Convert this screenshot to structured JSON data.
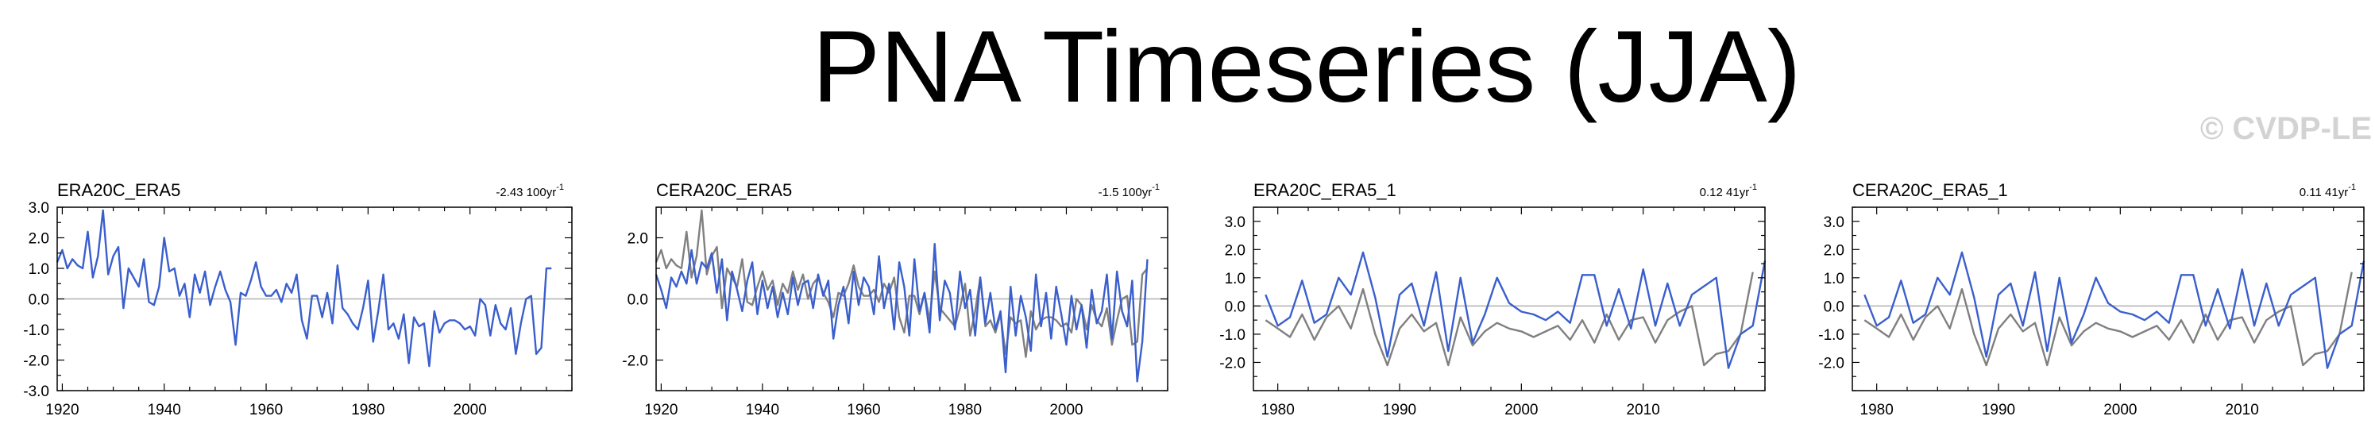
{
  "title": "PNA Timeseries (JJA)",
  "watermark": "© CVDP-LE",
  "colors": {
    "primary": "#3a5fcd",
    "secondary": "#808080",
    "zero_line": "#b0b0b0"
  },
  "chart_data": [
    {
      "type": "line",
      "title": "ERA20C_ERA5",
      "trend": "-2.43 100yr",
      "trend_sup": "-1",
      "xlim": [
        1919,
        2020
      ],
      "ylim": [
        -3.0,
        3.0
      ],
      "xticks": [
        1920,
        1940,
        1960,
        1980,
        2000
      ],
      "yticks": [
        3.0,
        2.0,
        1.0,
        0.0,
        -1.0,
        -2.0,
        -3.0
      ],
      "ytick_labels": [
        "3.0",
        "2.0",
        "1.0",
        "0.0",
        "-1.0",
        "-2.0",
        "-3.0"
      ],
      "series": [
        {
          "x_start": 1919,
          "values": [
            1.2,
            1.6,
            1.0,
            1.3,
            1.1,
            1.0,
            2.2,
            0.7,
            1.4,
            2.9,
            0.8,
            1.4,
            1.7,
            -0.3,
            1.0,
            0.7,
            0.4,
            1.3,
            -0.1,
            -0.2,
            0.4,
            2.0,
            0.9,
            1.0,
            0.1,
            0.5,
            -0.6,
            0.8,
            0.2,
            0.9,
            -0.2,
            0.4,
            0.9,
            0.3,
            -0.1,
            -1.5,
            0.2,
            0.1,
            0.6,
            1.2,
            0.4,
            0.1,
            0.1,
            0.3,
            -0.1,
            0.5,
            0.2,
            0.8,
            -0.7,
            -1.3,
            0.1,
            0.1,
            -0.6,
            0.2,
            -0.8,
            1.1,
            -0.3,
            -0.5,
            -0.8,
            -1.0,
            -0.3,
            0.6,
            -1.4,
            -0.4,
            0.8,
            -1.0,
            -0.8,
            -1.3,
            -0.5,
            -2.1,
            -0.6,
            -0.9,
            -0.8,
            -2.2,
            -0.4,
            -1.1,
            -0.8,
            -0.7,
            -0.7,
            -0.8,
            -1.0,
            -0.9,
            -1.2,
            0.0,
            -0.2,
            -1.2,
            -0.2,
            -0.8,
            -1.0,
            -0.3,
            -1.8,
            -0.8,
            0.0,
            0.1,
            -1.8,
            -1.6,
            1.0,
            1.0
          ]
        }
      ]
    },
    {
      "type": "line",
      "title": "CERA20C_ERA5",
      "trend": "-1.5 100yr",
      "trend_sup": "-1",
      "xlim": [
        1919,
        2020
      ],
      "ylim": [
        -3.0,
        3.0
      ],
      "xticks": [
        1920,
        1940,
        1960,
        1980,
        2000
      ],
      "yticks": [
        2.0,
        0.0,
        -2.0
      ],
      "ytick_labels": [
        "2.0",
        "0.0",
        "-2.0"
      ],
      "series": [
        {
          "name": "",
          "color_role": "secondary",
          "x_start": 1919,
          "values": [
            1.2,
            1.6,
            1.0,
            1.3,
            1.1,
            1.0,
            2.2,
            0.7,
            1.4,
            2.9,
            0.8,
            1.4,
            1.7,
            -0.3,
            1.0,
            0.7,
            0.4,
            1.3,
            -0.1,
            -0.2,
            0.4,
            0.9,
            0.3,
            0.6,
            -0.2,
            0.5,
            0.2,
            0.9,
            0.3,
            0.8,
            0.0,
            0.5,
            0.7,
            0.2,
            -0.1,
            -0.6,
            0.2,
            0.1,
            0.5,
            1.1,
            0.4,
            0.1,
            0.1,
            0.3,
            -0.1,
            0.5,
            0.2,
            0.7,
            -0.6,
            -1.1,
            0.1,
            0.1,
            -0.5,
            0.2,
            -0.7,
            0.9,
            -0.3,
            -0.5,
            -0.7,
            -0.9,
            -0.3,
            0.5,
            -1.2,
            -0.4,
            0.7,
            -0.9,
            -0.7,
            -1.1,
            -0.5,
            -1.8,
            -0.6,
            -0.8,
            -0.7,
            -1.9,
            -0.4,
            -1.0,
            -0.7,
            -0.6,
            -0.6,
            -0.7,
            -0.9,
            -0.8,
            -1.1,
            0.0,
            -0.2,
            -1.0,
            -0.2,
            -0.7,
            -0.9,
            -0.3,
            -1.5,
            -0.7,
            0.0,
            0.1,
            -1.5,
            -1.4,
            0.8,
            1.0
          ]
        },
        {
          "name": "",
          "color_role": "primary",
          "x_start": 1919,
          "values": [
            0.8,
            0.3,
            -0.3,
            0.7,
            0.4,
            0.9,
            0.5,
            1.6,
            0.5,
            1.2,
            1.0,
            1.5,
            0.2,
            1.3,
            -0.7,
            0.9,
            0.3,
            -0.4,
            0.6,
            1.2,
            -0.5,
            0.6,
            -0.3,
            0.4,
            -0.6,
            0.2,
            -0.5,
            0.7,
            -0.2,
            0.5,
            0.6,
            -0.3,
            0.8,
            0.1,
            0.6,
            -1.3,
            -0.2,
            0.4,
            -0.8,
            0.9,
            -0.2,
            0.7,
            0.4,
            -0.5,
            1.4,
            -0.3,
            0.5,
            -1.0,
            1.2,
            0.4,
            -1.2,
            1.3,
            -0.4,
            0.2,
            -1.1,
            1.8,
            -0.7,
            0.6,
            0.2,
            -1.0,
            0.9,
            -0.3,
            0.3,
            -1.2,
            0.7,
            -0.8,
            0.2,
            -1.0,
            -0.4,
            -2.4,
            0.4,
            -1.2,
            0.1,
            -0.6,
            -1.7,
            0.8,
            -0.9,
            0.2,
            -1.3,
            0.4,
            -0.5,
            -1.5,
            0.1,
            -1.0,
            -0.2,
            -1.6,
            0.3,
            -0.8,
            -0.4,
            0.8,
            -1.3,
            0.9,
            -0.4,
            -0.9,
            0.6,
            -2.7,
            -1.4,
            1.3
          ]
        }
      ]
    },
    {
      "type": "line",
      "title": "ERA20C_ERA5_1",
      "trend": "0.12 41yr",
      "trend_sup": "-1",
      "xlim": [
        1978,
        2020
      ],
      "ylim": [
        -3.0,
        3.5
      ],
      "xticks": [
        1980,
        1990,
        2000,
        2010
      ],
      "yticks": [
        3.0,
        2.0,
        1.0,
        0.0,
        -1.0,
        -2.0
      ],
      "ytick_labels": [
        "3.0",
        "2.0",
        "1.0",
        "0.0",
        "-1.0",
        "-2.0"
      ],
      "series": [
        {
          "name": "",
          "color_role": "secondary",
          "x_start": 1979,
          "values": [
            -0.5,
            -0.8,
            -1.1,
            -0.3,
            -1.2,
            -0.4,
            0.0,
            -0.8,
            0.6,
            -1.0,
            -2.1,
            -0.8,
            -0.3,
            -0.9,
            -0.6,
            -2.1,
            -0.4,
            -1.4,
            -0.9,
            -0.6,
            -0.8,
            -0.9,
            -1.1,
            -0.9,
            -0.7,
            -1.2,
            -0.5,
            -1.3,
            -0.3,
            -1.2,
            -0.5,
            -0.4,
            -1.3,
            -0.5,
            -0.2,
            0.0,
            -2.1,
            -1.7,
            -1.6,
            -1.0,
            1.2
          ]
        },
        {
          "name": "",
          "color_role": "primary",
          "x_start": 1979,
          "values": [
            0.4,
            -0.7,
            -0.4,
            0.9,
            -0.6,
            -0.3,
            1.0,
            0.4,
            1.9,
            0.3,
            -1.8,
            0.4,
            0.8,
            -0.7,
            1.2,
            -1.6,
            1.0,
            -1.3,
            -0.3,
            1.0,
            0.1,
            -0.2,
            -0.3,
            -0.5,
            -0.2,
            -0.6,
            1.1,
            1.1,
            -0.7,
            0.6,
            -0.8,
            1.3,
            -0.7,
            0.8,
            -0.7,
            0.4,
            0.7,
            1.0,
            -2.2,
            -1.0,
            -0.7,
            1.6
          ]
        }
      ]
    },
    {
      "type": "line",
      "title": "CERA20C_ERA5_1",
      "trend": "0.11 41yr",
      "trend_sup": "-1",
      "xlim": [
        1978,
        2020
      ],
      "ylim": [
        -3.0,
        3.5
      ],
      "xticks": [
        1980,
        1990,
        2000,
        2010
      ],
      "yticks": [
        3.0,
        2.0,
        1.0,
        0.0,
        -1.0,
        -2.0
      ],
      "ytick_labels": [
        "3.0",
        "2.0",
        "1.0",
        "0.0",
        "-1.0",
        "-2.0"
      ],
      "series": [
        {
          "name": "",
          "color_role": "secondary",
          "x_start": 1979,
          "values": [
            -0.5,
            -0.8,
            -1.1,
            -0.3,
            -1.2,
            -0.4,
            0.0,
            -0.8,
            0.6,
            -1.0,
            -2.1,
            -0.8,
            -0.3,
            -0.9,
            -0.6,
            -2.1,
            -0.4,
            -1.4,
            -0.9,
            -0.6,
            -0.8,
            -0.9,
            -1.1,
            -0.9,
            -0.7,
            -1.2,
            -0.5,
            -1.3,
            -0.3,
            -1.2,
            -0.5,
            -0.4,
            -1.3,
            -0.5,
            -0.2,
            0.0,
            -2.1,
            -1.7,
            -1.6,
            -1.0,
            1.2
          ]
        },
        {
          "name": "",
          "color_role": "primary",
          "x_start": 1979,
          "values": [
            0.4,
            -0.7,
            -0.4,
            0.9,
            -0.6,
            -0.3,
            1.0,
            0.4,
            1.9,
            0.3,
            -1.8,
            0.4,
            0.8,
            -0.7,
            1.2,
            -1.6,
            1.0,
            -1.3,
            -0.3,
            1.0,
            0.1,
            -0.2,
            -0.3,
            -0.5,
            -0.2,
            -0.6,
            1.1,
            1.1,
            -0.7,
            0.6,
            -0.8,
            1.3,
            -0.7,
            0.8,
            -0.7,
            0.4,
            0.7,
            1.0,
            -2.2,
            -1.0,
            -0.7,
            1.6
          ]
        }
      ]
    }
  ]
}
